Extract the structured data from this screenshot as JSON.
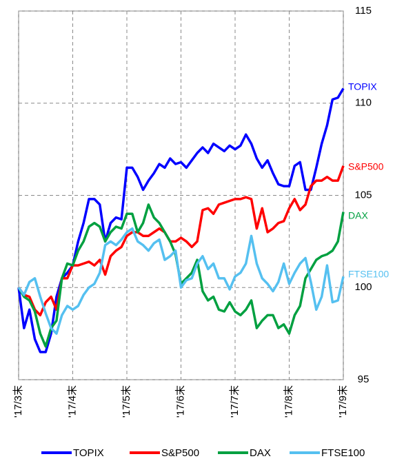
{
  "chart_data": {
    "type": "line",
    "x": [
      0,
      0.1,
      0.2,
      0.3,
      0.4,
      0.5,
      0.6,
      0.7,
      0.8,
      0.9,
      1,
      1.1,
      1.2,
      1.3,
      1.4,
      1.5,
      1.6,
      1.7,
      1.8,
      1.9,
      2,
      2.1,
      2.2,
      2.3,
      2.4,
      2.5,
      2.6,
      2.7,
      2.8,
      2.9,
      3,
      3.1,
      3.2,
      3.3,
      3.4,
      3.5,
      3.6,
      3.7,
      3.8,
      3.9,
      4,
      4.1,
      4.2,
      4.3,
      4.4,
      4.5,
      4.6,
      4.7,
      4.8,
      4.9,
      5,
      5.1,
      5.2,
      5.3,
      5.4,
      5.5,
      5.6,
      5.7,
      5.8,
      5.9,
      6
    ],
    "xlim": [
      0,
      6
    ],
    "xticks": [
      {
        "value": 0,
        "label": "'17/3末"
      },
      {
        "value": 1,
        "label": "'17/4末"
      },
      {
        "value": 2,
        "label": "'17/5末"
      },
      {
        "value": 3,
        "label": "'17/6末"
      },
      {
        "value": 4,
        "label": "'17/7末"
      },
      {
        "value": 5,
        "label": "'17/8末"
      },
      {
        "value": 6,
        "label": "'17/9末"
      }
    ],
    "ylim": [
      95,
      115
    ],
    "yticks": [
      95,
      100,
      105,
      110,
      115
    ],
    "grid": true,
    "series": [
      {
        "name": "TOPIX",
        "color": "#0000ff",
        "values": [
          100,
          97.8,
          98.8,
          97.2,
          96.5,
          96.5,
          97.5,
          99.5,
          100.5,
          100.8,
          101.2,
          102.5,
          103.5,
          104.8,
          104.8,
          104.5,
          102.5,
          103.5,
          103.8,
          103.7,
          106.5,
          106.5,
          106,
          105.3,
          105.8,
          106.2,
          106.7,
          106.5,
          107,
          106.7,
          106.8,
          106.5,
          106.9,
          107.3,
          107.6,
          107.3,
          107.8,
          107.6,
          107.4,
          107.7,
          107.5,
          107.7,
          108.3,
          107.8,
          107,
          106.5,
          106.9,
          106.2,
          105.6,
          105.5,
          105.5,
          106.6,
          106.8,
          105.3,
          105.3,
          106.5,
          107.8,
          108.8,
          110.2,
          110.3,
          110.8
        ]
      },
      {
        "name": "S&P500",
        "color": "#ff0000",
        "values": [
          100,
          99.6,
          99.5,
          98.8,
          98.5,
          99.2,
          99.5,
          98.8,
          100.5,
          100.5,
          101.2,
          101.2,
          101.3,
          101.4,
          101.2,
          101.5,
          100.7,
          101.7,
          102,
          102.2,
          102.8,
          103,
          103,
          102.8,
          102.8,
          103,
          103.2,
          103,
          102.5,
          102.5,
          102.7,
          102.5,
          102.2,
          102.5,
          104.2,
          104.3,
          104,
          104.5,
          104.6,
          104.7,
          104.8,
          104.8,
          104.9,
          104.8,
          103.2,
          104.3,
          103,
          103.2,
          103.5,
          103.6,
          104.3,
          104.8,
          104.2,
          104.5,
          105.5,
          105.8,
          105.8,
          106,
          105.8,
          105.8,
          106.6
        ]
      },
      {
        "name": "DAX",
        "color": "#00a040",
        "values": [
          100,
          99.5,
          99.3,
          98.7,
          97.5,
          96.8,
          97.8,
          98.2,
          100.5,
          101.3,
          101.2,
          102,
          102.5,
          103.3,
          103.5,
          103.3,
          102.5,
          103,
          103.3,
          103.2,
          104,
          104,
          103,
          103.5,
          104.5,
          103.8,
          103.5,
          103,
          102.5,
          101.8,
          100.2,
          100.5,
          100.8,
          101.5,
          99.8,
          99.3,
          99.5,
          98.8,
          98.7,
          99.2,
          98.7,
          98.5,
          98.8,
          99.3,
          97.8,
          98.2,
          98.5,
          98.5,
          97.8,
          98,
          97.5,
          98.5,
          99,
          100.5,
          101,
          101.5,
          101.7,
          101.8,
          102,
          102.5,
          104.1
        ]
      },
      {
        "name": "FTSE100",
        "color": "#55c0f0",
        "values": [
          100,
          99.6,
          100.3,
          100.5,
          99.5,
          98.6,
          97.8,
          97.5,
          98.5,
          99,
          98.8,
          99,
          99.6,
          100,
          100.2,
          100.8,
          102.3,
          102.5,
          102.3,
          102.6,
          103,
          103.2,
          102.5,
          102.3,
          102,
          102.4,
          102.6,
          101.5,
          101.7,
          102,
          100,
          100.4,
          100.5,
          101.3,
          101.7,
          101,
          101.3,
          100.5,
          100.5,
          99.9,
          100.6,
          100.8,
          101.3,
          102.8,
          101.3,
          100.5,
          100.2,
          99.8,
          100.3,
          101.3,
          100.2,
          100.8,
          101.3,
          101.6,
          100.3,
          98.8,
          99.5,
          101.2,
          99.2,
          99.3,
          100.6
        ]
      }
    ]
  }
}
